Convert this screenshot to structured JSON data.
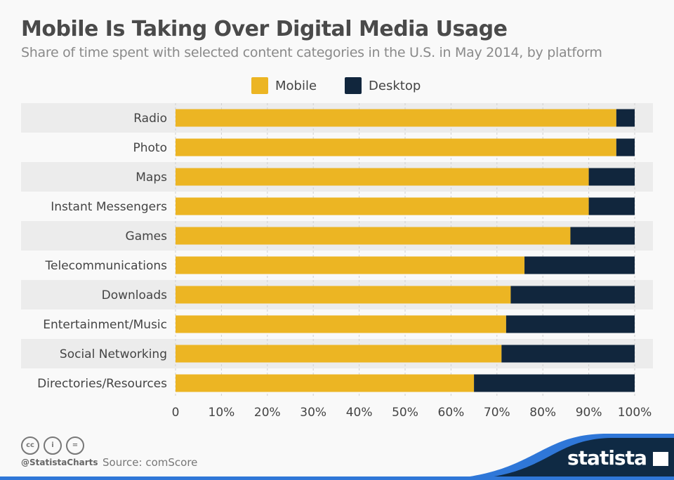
{
  "chart_data": {
    "type": "bar",
    "orientation": "horizontal",
    "stacked": true,
    "title": "Mobile Is Taking Over Digital Media Usage",
    "subtitle": "Share of time spent with selected content categories in the U.S. in May 2014, by platform",
    "categories": [
      "Radio",
      "Photo",
      "Maps",
      "Instant Messengers",
      "Games",
      "Telecommunications",
      "Downloads",
      "Entertainment/Music",
      "Social Networking",
      "Directories/Resources"
    ],
    "series": [
      {
        "name": "Mobile",
        "color": "#ecb523",
        "values": [
          96,
          96,
          90,
          90,
          86,
          76,
          73,
          72,
          71,
          65
        ]
      },
      {
        "name": "Desktop",
        "color": "#11263d",
        "values": [
          4,
          4,
          10,
          10,
          14,
          24,
          27,
          28,
          29,
          35
        ]
      }
    ],
    "xlim": [
      0,
      100
    ],
    "xticks": [
      "0",
      "10%",
      "20%",
      "30%",
      "40%",
      "50%",
      "60%",
      "70%",
      "80%",
      "90%",
      "100%"
    ],
    "grid": true,
    "legend": "top-center"
  },
  "footer": {
    "handle": "@StatistaCharts",
    "source": "Source: comScore",
    "logo": "statista",
    "license_icons": [
      "cc",
      "by",
      "nd"
    ]
  }
}
